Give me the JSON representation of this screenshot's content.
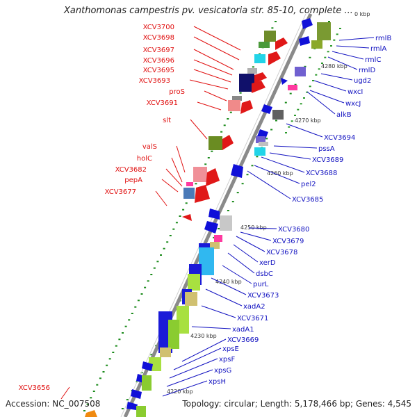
{
  "title": "Xanthomonas campestris pv. vesicatoria str. 85-10, complete ...",
  "accession": "Accession: NC_007508",
  "topology": "Topology: circular; Length: 5,178,466 bp; Genes: 4,545",
  "colors": {
    "left_label": "#e01010",
    "right_label": "#1010c0",
    "backbone": "#8a8a8a"
  },
  "kbp_ticks": [
    "4280 kbp",
    "4270 kbp",
    "4260 kbp",
    "4250 kbp",
    "4240 kbp",
    "4230 kbp",
    "4220 kbp"
  ],
  "top_tick": "0 kbp",
  "left_labels": [
    "XCV3700",
    "XCV3698",
    "XCV3697",
    "XCV3696",
    "XCV3695",
    "XCV3693",
    "proS",
    "XCV3691",
    "slt",
    "valS",
    "holC",
    "XCV3682",
    "pepA",
    "XCV3677",
    "XCV3656"
  ],
  "right_labels": [
    "rmlB",
    "rmlA",
    "rmlC",
    "rmlD",
    "ugd2",
    "wxcI",
    "wxcJ",
    "alkB",
    "XCV3694",
    "pssA",
    "XCV3689",
    "XCV3688",
    "pel2",
    "XCV3685",
    "XCV3680",
    "XCV3679",
    "XCV3678",
    "xerD",
    "dsbC",
    "purL",
    "XCV3673",
    "xadA2",
    "XCV3671",
    "xadA1",
    "XCV3669",
    "xpsE",
    "xpsF",
    "xpsG",
    "xpsH"
  ]
}
